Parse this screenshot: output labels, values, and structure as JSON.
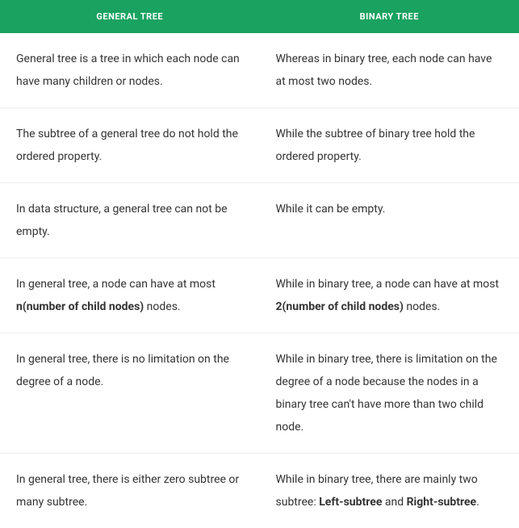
{
  "table": {
    "header_bg": "#1aa260",
    "header_text_color": "#ffffff",
    "border_color": "#eeeeee",
    "cell_text_color": "#333333",
    "font_size_header": 11,
    "font_size_cell": 14,
    "columns": [
      {
        "label": "GENERAL TREE"
      },
      {
        "label": "BINARY TREE"
      }
    ],
    "rows": [
      {
        "left": [
          {
            "t": "General tree is a tree in which each node can have many children or nodes."
          }
        ],
        "right": [
          {
            "t": "Whereas in binary tree, each node can have at most two nodes."
          }
        ]
      },
      {
        "left": [
          {
            "t": "The subtree of a general tree do not hold the ordered property."
          }
        ],
        "right": [
          {
            "t": "While the subtree of binary tree hold the ordered property."
          }
        ]
      },
      {
        "left": [
          {
            "t": "In data structure, a general tree can not be empty."
          }
        ],
        "right": [
          {
            "t": "While it can be empty."
          }
        ]
      },
      {
        "left": [
          {
            "t": "In general tree, a node can have at most "
          },
          {
            "t": "n(number of child nodes)",
            "bold": true
          },
          {
            "t": " nodes."
          }
        ],
        "right": [
          {
            "t": "While in binary tree, a node can have at most "
          },
          {
            "t": "2(number of child nodes)",
            "bold": true
          },
          {
            "t": " nodes."
          }
        ]
      },
      {
        "left": [
          {
            "t": "In general tree, there is no limitation on the degree of a node."
          }
        ],
        "right": [
          {
            "t": "While in binary tree, there is limitation on the degree of a node because the nodes in a binary tree can't have more than two child node."
          }
        ]
      },
      {
        "left": [
          {
            "t": "In general tree, there is either zero subtree or many subtree."
          }
        ],
        "right": [
          {
            "t": "While in binary tree, there are mainly two subtree: "
          },
          {
            "t": "Left-subtree",
            "bold": true
          },
          {
            "t": " and "
          },
          {
            "t": "Right-subtree",
            "bold": true
          },
          {
            "t": "."
          }
        ]
      }
    ]
  }
}
